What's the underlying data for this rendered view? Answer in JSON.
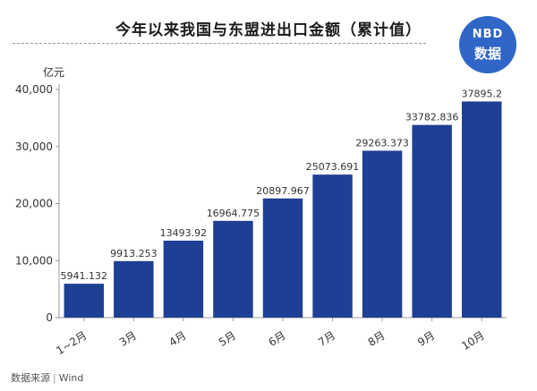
{
  "header": {
    "title": "今年以来我国与东盟进出口金额（累计值）"
  },
  "logo": {
    "line1": "NBD",
    "line2": "数据"
  },
  "footer": {
    "source_label": "数据来源",
    "separator": "|",
    "source_value": "Wind"
  },
  "colors": {
    "bar": "#1e3f94",
    "axis": "#999999",
    "logo": "#2f66c7"
  },
  "chart_data": {
    "type": "bar",
    "title": "今年以来我国与东盟进出口金额（累计值）",
    "ylabel": "亿元",
    "xlabel": "",
    "ylim": [
      0,
      40000
    ],
    "yticks": [
      0,
      10000,
      20000,
      30000,
      40000
    ],
    "ytick_labels": [
      "0",
      "10,000",
      "20,000",
      "30,000",
      "40,000"
    ],
    "grid": false,
    "categories": [
      "1~2月",
      "3月",
      "4月",
      "5月",
      "6月",
      "7月",
      "8月",
      "9月",
      "10月"
    ],
    "values": [
      5941.132,
      9913.253,
      13493.92,
      16964.775,
      20897.967,
      25073.691,
      29263.373,
      33782.836,
      37895.2
    ],
    "value_labels": [
      "5941.132",
      "9913.253",
      "13493.92",
      "16964.775",
      "20897.967",
      "25073.691",
      "29263.373",
      "33782.836",
      "37895.2"
    ]
  }
}
